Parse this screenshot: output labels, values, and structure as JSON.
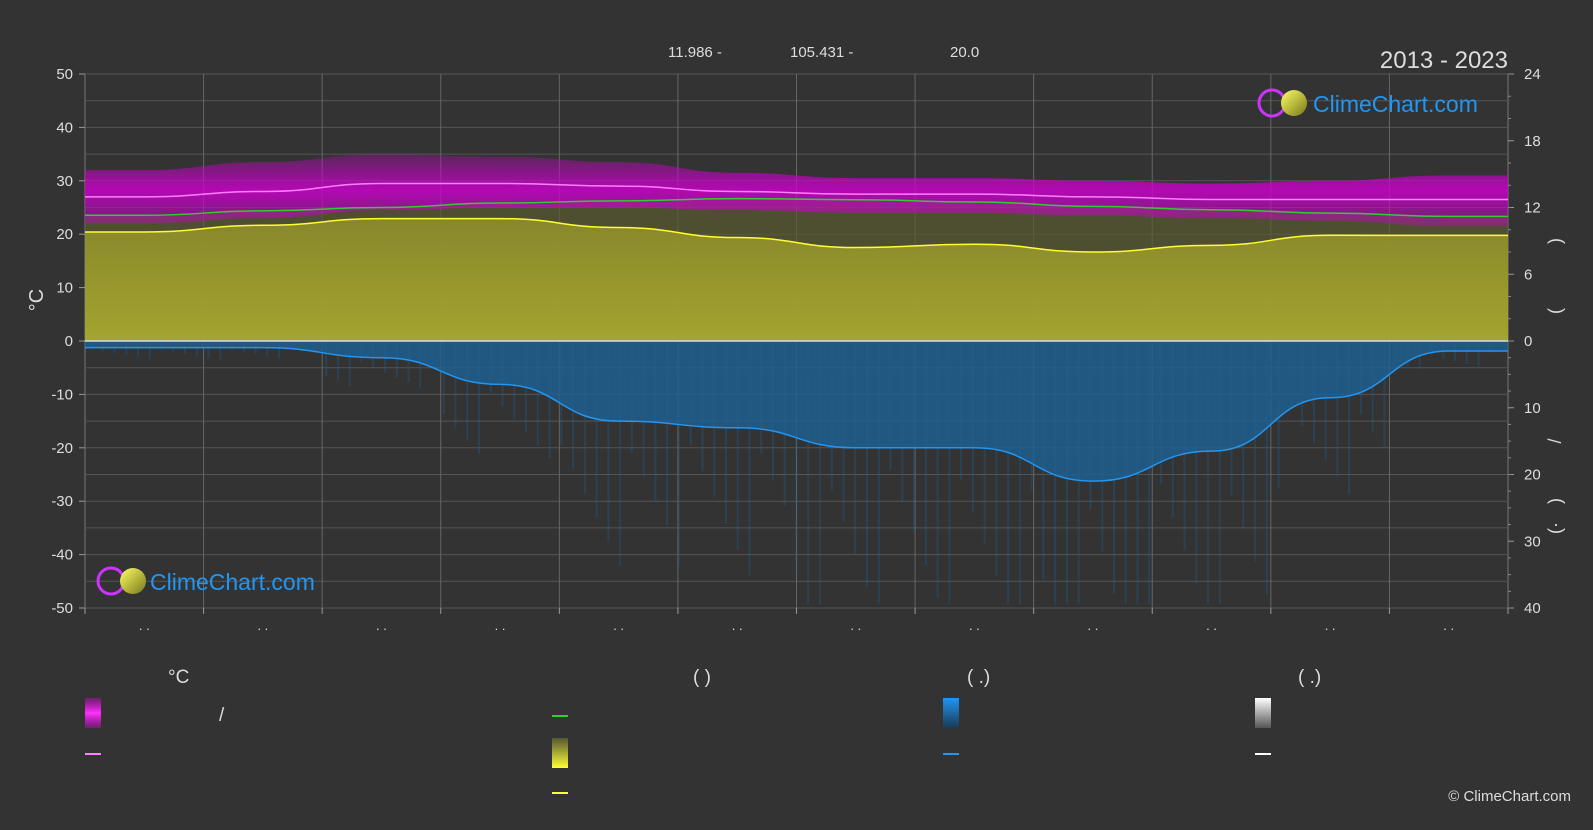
{
  "header": {
    "coords": [
      "11.986 -",
      "105.431 -",
      "20.0"
    ],
    "period": "2013 - 2023"
  },
  "brand": {
    "name": "ClimeChart.com",
    "copyright": "© ClimeChart.com"
  },
  "colors": {
    "background": "#333333",
    "temp_range": "#cc00cc",
    "mean_line_pink": "#ff80ff",
    "daylight_line": "#33cc33",
    "sunshine_fill": "#b2b22e",
    "sunshine_line": "#ffff33",
    "rain_fill": "#1f5f90",
    "rain_line": "#2196f3",
    "snow_line": "#ffffff",
    "brand_blue": "#2196f3"
  },
  "chart_data": {
    "type": "area",
    "left_axis": {
      "label": "°C",
      "min": -50,
      "max": 50,
      "ticks": [
        50,
        40,
        30,
        20,
        10,
        0,
        -10,
        -20,
        -30,
        -40,
        -50
      ]
    },
    "right_axis_upper": {
      "min": 0,
      "max": 24,
      "ticks": [
        24,
        18,
        12,
        6,
        0
      ],
      "label_fragments": [
        ")",
        "("
      ]
    },
    "right_axis_lower": {
      "min": 0,
      "max": 40,
      "ticks": [
        0,
        10,
        20,
        30,
        40
      ],
      "label_fragments": [
        "/",
        ")",
        "(·"
      ]
    },
    "month_labels": [
      ". .",
      ". .",
      ". .",
      ". .",
      ". .",
      ". .",
      ". .",
      ". .",
      ". .",
      ". .",
      ". .",
      ". ."
    ],
    "months_x": [
      0.5,
      1.5,
      2.5,
      3.5,
      4.5,
      5.5,
      6.5,
      7.5,
      8.5,
      9.5,
      10.5,
      11.5
    ],
    "temp_max_band": [
      32,
      33.5,
      35,
      34.5,
      33.5,
      31.5,
      30.5,
      30.5,
      30,
      29.5,
      30,
      31
    ],
    "temp_min_band": [
      22,
      23,
      24.5,
      25,
      25,
      24.5,
      24,
      24,
      23.5,
      23,
      22.5,
      21.5
    ],
    "mean_max_temp": [
      27,
      28,
      29.5,
      29.5,
      29,
      28,
      27.5,
      27.5,
      27,
      26.5,
      26.5,
      26.5
    ],
    "daylight_hours": [
      11.3,
      11.7,
      12.0,
      12.4,
      12.6,
      12.8,
      12.7,
      12.5,
      12.1,
      11.8,
      11.5,
      11.2
    ],
    "sunshine_hours": [
      9.8,
      10.4,
      11.0,
      11.0,
      10.2,
      9.3,
      8.4,
      8.7,
      8.0,
      8.6,
      9.5,
      9.5
    ],
    "rain_mm": [
      1.0,
      1.0,
      2.5,
      6.5,
      12.0,
      13.0,
      16.0,
      16.0,
      21.0,
      16.5,
      8.5,
      1.5
    ],
    "series": [
      {
        "name": "",
        "key": "mean_max_temp"
      },
      {
        "name": "",
        "key": "daylight_hours"
      },
      {
        "name": "",
        "key": "sunshine_hours"
      },
      {
        "name": "",
        "key": "rain_mm"
      }
    ]
  },
  "legend": {
    "col1_header": "°C",
    "col1_range_sep": "/",
    "col2_header": "(            )",
    "col3_header": "(    .)",
    "col4_header": "(    .)"
  }
}
